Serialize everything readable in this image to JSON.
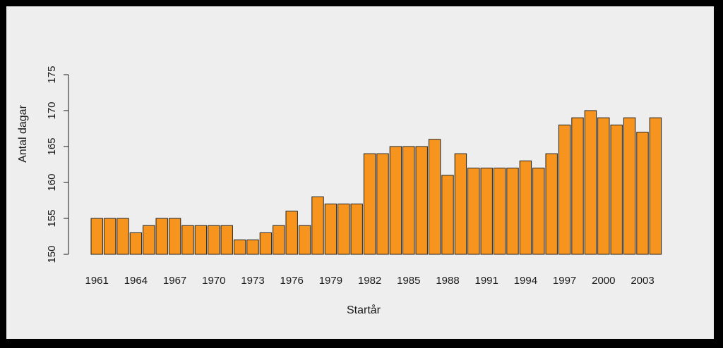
{
  "chart_data": {
    "type": "bar",
    "title": "",
    "xlabel": "Startår",
    "ylabel": "Antal dagar",
    "ylim": [
      150,
      175
    ],
    "yticks": [
      150,
      155,
      160,
      165,
      170,
      175
    ],
    "x_tick_labels": [
      "1961",
      "1964",
      "1967",
      "1970",
      "1973",
      "1976",
      "1979",
      "1982",
      "1985",
      "1988",
      "1991",
      "1994",
      "1997",
      "2000",
      "2003"
    ],
    "categories": [
      1961,
      1962,
      1963,
      1964,
      1965,
      1966,
      1967,
      1968,
      1969,
      1970,
      1971,
      1972,
      1973,
      1974,
      1975,
      1976,
      1977,
      1978,
      1979,
      1980,
      1981,
      1982,
      1983,
      1984,
      1985,
      1986,
      1987,
      1988,
      1989,
      1990,
      1991,
      1992,
      1993,
      1994,
      1995,
      1996,
      1997,
      1998,
      1999,
      2000,
      2001,
      2002,
      2003,
      2004
    ],
    "values": [
      155,
      155,
      155,
      153,
      154,
      155,
      155,
      154,
      154,
      154,
      154,
      152,
      152,
      153,
      154,
      156,
      154,
      158,
      157,
      157,
      157,
      164,
      164,
      165,
      165,
      165,
      166,
      161,
      164,
      162,
      162,
      162,
      162,
      163,
      162,
      164,
      168,
      169,
      170,
      169,
      168,
      169,
      167,
      169
    ],
    "bar_color": "#f7941d",
    "bar_edge_color": "#222222",
    "background_color": "#eeeeee",
    "grid": false,
    "legend": "none"
  }
}
